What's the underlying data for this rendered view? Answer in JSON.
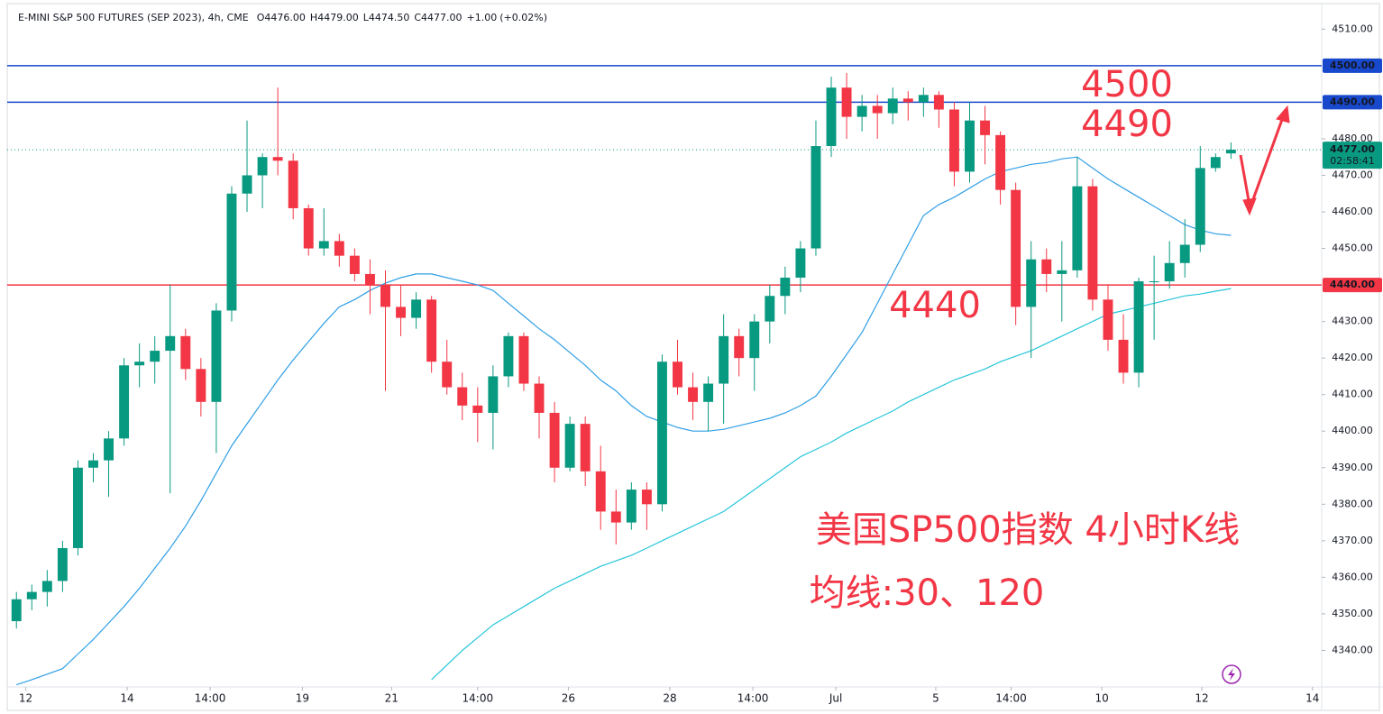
{
  "chart_data": {
    "type": "candlestick",
    "title": "E-MINI S&P 500 FUTURES (SEP 2023), 4h, CME",
    "ohlc_legend": [
      {
        "key": "O",
        "value": 4476,
        "label": "4476.00"
      },
      {
        "key": "H",
        "value": 4479,
        "label": "4479.00"
      },
      {
        "key": "L",
        "value": 4474.5,
        "label": "4474.50"
      },
      {
        "key": "C",
        "value": 4477,
        "label": "4477.00"
      }
    ],
    "change": {
      "value": 1,
      "label": "+1.00"
    },
    "change_pct": {
      "value": 0.02,
      "label": "(+0.02%)"
    },
    "up_color": "#089981",
    "down_color": "#f23645",
    "open": [
      4348,
      4354,
      4356,
      4359,
      4368,
      4390,
      4392,
      4398,
      4418,
      4419,
      4422,
      4426,
      4417,
      4408,
      4433,
      4465,
      4470,
      4475,
      4474,
      4461,
      4450,
      4452,
      4448,
      4443,
      4440,
      4434,
      4431,
      4436,
      4419,
      4412,
      4407,
      4405,
      4415,
      4426,
      4413,
      4405,
      4390,
      4402,
      4389,
      4378,
      4375,
      4384,
      4380,
      4419,
      4412,
      4408,
      4413,
      4426,
      4420,
      4430,
      4437,
      4442,
      4450,
      4478,
      4494,
      4486,
      4489,
      4487,
      4491,
      4490,
      4492,
      4488,
      4471,
      4485,
      4481,
      4466,
      4434,
      4447,
      4443,
      4444,
      4467,
      4436,
      4425,
      4416,
      4441,
      4441,
      4446,
      4451,
      4472,
      4476
    ],
    "high": [
      4356,
      4358,
      4362,
      4370,
      4392,
      4394,
      4400,
      4420,
      4424,
      4426,
      4440,
      4428,
      4420,
      4435,
      4467,
      4485,
      4476,
      4494,
      4476,
      4462,
      4461,
      4454,
      4450,
      4447,
      4444,
      4440,
      4438,
      4437,
      4425,
      4416,
      4412,
      4418,
      4427,
      4427,
      4415,
      4408,
      4404,
      4404,
      4396,
      4384,
      4386,
      4386,
      4421,
      4425,
      4416,
      4415,
      4432,
      4428,
      4432,
      4440,
      4445,
      4452,
      4485,
      4497,
      4498,
      4492,
      4492,
      4494,
      4493,
      4494,
      4493,
      4490,
      4490,
      4489,
      4482,
      4468,
      4452,
      4450,
      4452,
      4475,
      4469,
      4440,
      4432,
      4442,
      4448,
      4452,
      4458,
      4478,
      4476,
      4479
    ],
    "low": [
      4346,
      4351,
      4352,
      4356,
      4366,
      4386,
      4382,
      4396,
      4412,
      4413,
      4383,
      4414,
      4404,
      4394,
      4430,
      4460,
      4461,
      4470,
      4458,
      4448,
      4448,
      4445,
      4441,
      4432,
      4411,
      4426,
      4428,
      4416,
      4410,
      4403,
      4397,
      4395,
      4412,
      4411,
      4398,
      4386,
      4389,
      4385,
      4373,
      4369,
      4373,
      4373,
      4378,
      4410,
      4403,
      4400,
      4402,
      4415,
      4411,
      4424,
      4432,
      4438,
      4448,
      4475,
      4480,
      4482,
      4480,
      4484,
      4485,
      4486,
      4483,
      4467,
      4468,
      4473,
      4462,
      4429,
      4420,
      4438,
      4430,
      4442,
      4433,
      4422,
      4413,
      4412,
      4425,
      4439,
      4442,
      4449,
      4471,
      4474.5
    ],
    "close": [
      4354,
      4356,
      4359,
      4368,
      4390,
      4392,
      4398,
      4418,
      4419,
      4422,
      4426,
      4417,
      4408,
      4433,
      4465,
      4470,
      4475,
      4474,
      4461,
      4450,
      4452,
      4448,
      4443,
      4440,
      4434,
      4431,
      4436,
      4419,
      4412,
      4407,
      4405,
      4415,
      4426,
      4413,
      4405,
      4390,
      4402,
      4389,
      4378,
      4375,
      4384,
      4380,
      4419,
      4412,
      4408,
      4413,
      4426,
      4420,
      4430,
      4437,
      4442,
      4450,
      4478,
      4494,
      4486,
      4489,
      4487,
      4491,
      4490,
      4492,
      4488,
      4471,
      4485,
      4481,
      4466,
      4434,
      4447,
      4443,
      4444,
      4467,
      4436,
      4425,
      4416,
      4441,
      4441,
      4446,
      4451,
      4472,
      4475,
      4477
    ],
    "moving_averages": [
      {
        "color": "#2f9fe6",
        "values": [
          4330.6,
          4332,
          4333.5,
          4335,
          4339,
          4343,
          4347.5,
          4352,
          4357,
          4362.5,
          4368,
          4374,
          4381,
          4388.5,
          4396,
          4402,
          4408,
          4414,
          4419.5,
          4424.5,
          4429.5,
          4434,
          4436,
          4438.5,
          4440.5,
          4442,
          4443,
          4443,
          4442,
          4441,
          4440,
          4438.5,
          4435,
          4431.5,
          4428,
          4425,
          4421.5,
          4418,
          4414,
          4411,
          4407,
          4404,
          4402.5,
          4401,
          4400,
          4400,
          4400.5,
          4401.5,
          4402.5,
          4403.5,
          4405,
          4407,
          4409.6,
          4415,
          4421,
          4427,
          4435,
          4443,
          4451,
          4459,
          4462,
          4464,
          4466.5,
          4469,
          4471,
          4472,
          4473,
          4473.5,
          4474.5,
          4475,
          4472,
          4469,
          4466.5,
          4464,
          4461.5,
          4459,
          4456.5,
          4455,
          4454,
          4453.6
        ]
      },
      {
        "color": "#26c6da",
        "values": [
          null,
          null,
          null,
          null,
          null,
          null,
          null,
          null,
          null,
          null,
          null,
          null,
          null,
          null,
          null,
          null,
          null,
          null,
          null,
          null,
          null,
          null,
          null,
          null,
          null,
          null,
          null,
          4332,
          4336,
          4340,
          4343.5,
          4347,
          4349.5,
          4352,
          4354.5,
          4357,
          4359,
          4361,
          4363,
          4364.5,
          4366,
          4368,
          4370,
          4372,
          4374,
          4376,
          4378,
          4381,
          4384,
          4387,
          4390,
          4393,
          4395,
          4397,
          4399.5,
          4401.5,
          4403.5,
          4405.5,
          4408,
          4410,
          4412,
          4414,
          4415.5,
          4417,
          4419,
          4420.5,
          4422,
          4424,
          4426,
          4428,
          4430,
          4432,
          4433,
          4434,
          4435,
          4436,
          4437,
          4437.5,
          4438.3,
          4439
        ]
      }
    ],
    "hlines": [
      {
        "value": 4500,
        "label": "4500.00",
        "color": "#1848cc"
      },
      {
        "value": 4490,
        "label": "4490.00",
        "color": "#1848cc"
      },
      {
        "value": 4440,
        "label": "4440.00",
        "color": "#f23645"
      }
    ],
    "last_price": {
      "value": 4477,
      "label": "4477.00",
      "countdown": "02:58:41"
    },
    "ylim": [
      4330,
      4516
    ],
    "yticks": [
      {
        "value": 4340,
        "label": "4340.00"
      },
      {
        "value": 4350,
        "label": "4350.00"
      },
      {
        "value": 4360,
        "label": "4360.00"
      },
      {
        "value": 4370,
        "label": "4370.00"
      },
      {
        "value": 4380,
        "label": "4380.00"
      },
      {
        "value": 4390,
        "label": "4390.00"
      },
      {
        "value": 4400,
        "label": "4400.00"
      },
      {
        "value": 4410,
        "label": "4410.00"
      },
      {
        "value": 4420,
        "label": "4420.00"
      },
      {
        "value": 4430,
        "label": "4430.00"
      },
      {
        "value": 4450,
        "label": "4450.00"
      },
      {
        "value": 4460,
        "label": "4460.00"
      },
      {
        "value": 4470,
        "label": "4470.00"
      },
      {
        "value": 4480,
        "label": "4480.00"
      },
      {
        "value": 4510,
        "label": "4510.00"
      }
    ],
    "xlim": [
      -0.6,
      84.9
    ],
    "xticks": [
      {
        "value": 0.6,
        "label": "12"
      },
      {
        "value": 7.2,
        "label": "14"
      },
      {
        "value": 12.6,
        "label": "14:00"
      },
      {
        "value": 18.6,
        "label": "19"
      },
      {
        "value": 24.4,
        "label": "21"
      },
      {
        "value": 30,
        "label": "14:00"
      },
      {
        "value": 35.9,
        "label": "26"
      },
      {
        "value": 42.5,
        "label": "28"
      },
      {
        "value": 47.9,
        "label": "14:00"
      },
      {
        "value": 53.3,
        "label": "Jul"
      },
      {
        "value": 59.8,
        "label": "5"
      },
      {
        "value": 64.7,
        "label": "14:00"
      },
      {
        "value": 70.6,
        "label": "10"
      },
      {
        "value": 77.1,
        "label": "12"
      },
      {
        "value": 84.3,
        "label": "14"
      }
    ],
    "annotations": [
      "4500",
      "4490",
      "4440",
      "美国SP500指数 4小时K线",
      "均线:30、120"
    ],
    "grid": false
  }
}
